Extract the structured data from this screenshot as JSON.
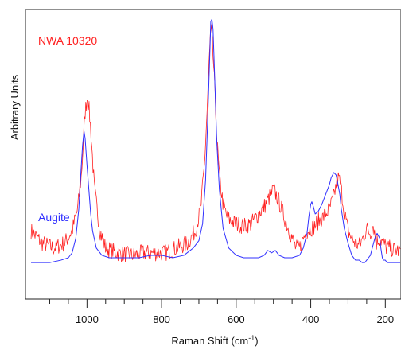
{
  "chart_data": {
    "type": "line",
    "xlabel": "Raman Shift (cm",
    "xlabel_sup": "-1",
    "xlabel_close": ")",
    "ylabel": "Arbitrary Units",
    "x_reversed": true,
    "xlim": [
      1165,
      158
    ],
    "ylim": [
      -0.15,
      1.04
    ],
    "x_major_ticks": [
      1000,
      800,
      600,
      400,
      200
    ],
    "x_minor_ticks": [
      1100,
      1050,
      950,
      900,
      850,
      750,
      700,
      650,
      550,
      500,
      450,
      350,
      300,
      250
    ],
    "grid": false,
    "legend": "inline",
    "series": [
      {
        "name": "NWA 10320",
        "color": "#ff2020",
        "noisy": true,
        "x": [
          1150,
          1120,
          1090,
          1060,
          1040,
          1025,
          1015,
          1005,
          998,
          990,
          980,
          965,
          950,
          920,
          880,
          850,
          820,
          790,
          760,
          730,
          710,
          695,
          685,
          678,
          672,
          668,
          665,
          660,
          652,
          645,
          635,
          625,
          615,
          600,
          580,
          560,
          540,
          525,
          510,
          500,
          490,
          478,
          465,
          450,
          440,
          430,
          420,
          410,
          400,
          390,
          380,
          370,
          360,
          350,
          340,
          330,
          325,
          320,
          310,
          300,
          290,
          280,
          270,
          260,
          250,
          240,
          232,
          225,
          215,
          205,
          195,
          185,
          175,
          160
        ],
        "y": [
          0.13,
          0.08,
          0.06,
          0.08,
          0.13,
          0.22,
          0.36,
          0.62,
          0.69,
          0.55,
          0.3,
          0.13,
          0.06,
          0.04,
          0.03,
          0.04,
          0.04,
          0.04,
          0.06,
          0.08,
          0.13,
          0.22,
          0.4,
          0.62,
          0.84,
          0.96,
          0.92,
          0.8,
          0.52,
          0.35,
          0.24,
          0.19,
          0.17,
          0.16,
          0.15,
          0.16,
          0.2,
          0.23,
          0.27,
          0.3,
          0.27,
          0.22,
          0.16,
          0.1,
          0.06,
          0.06,
          0.1,
          0.13,
          0.14,
          0.15,
          0.17,
          0.18,
          0.2,
          0.22,
          0.26,
          0.33,
          0.35,
          0.32,
          0.21,
          0.13,
          0.1,
          0.08,
          0.07,
          0.1,
          0.14,
          0.12,
          0.16,
          0.08,
          0.1,
          0.08,
          0.06,
          0.06,
          0.05,
          0.05
        ]
      },
      {
        "name": "Augite",
        "color": "#3030ff",
        "noisy": false,
        "x": [
          1150,
          1100,
          1070,
          1050,
          1040,
          1030,
          1022,
          1016,
          1012,
          1008,
          1005,
          1000,
          995,
          990,
          985,
          975,
          960,
          940,
          900,
          860,
          830,
          800,
          770,
          740,
          715,
          700,
          690,
          682,
          676,
          671,
          668,
          665,
          662,
          658,
          652,
          645,
          635,
          620,
          600,
          580,
          560,
          540,
          525,
          515,
          505,
          495,
          485,
          470,
          450,
          430,
          420,
          410,
          405,
          400,
          397,
          393,
          388,
          380,
          370,
          360,
          350,
          345,
          338,
          332,
          328,
          322,
          318,
          310,
          300,
          290,
          280,
          270,
          262,
          255,
          250,
          245,
          240,
          235,
          228,
          222,
          215,
          212,
          208,
          205,
          200,
          195,
          185,
          175,
          160
        ],
        "y": [
          0.0,
          0.0,
          0.01,
          0.02,
          0.04,
          0.1,
          0.22,
          0.38,
          0.48,
          0.54,
          0.51,
          0.4,
          0.3,
          0.2,
          0.13,
          0.06,
          0.03,
          0.02,
          0.02,
          0.02,
          0.03,
          0.03,
          0.02,
          0.03,
          0.06,
          0.09,
          0.16,
          0.34,
          0.6,
          0.84,
          0.99,
          1.0,
          0.96,
          0.78,
          0.5,
          0.3,
          0.14,
          0.06,
          0.03,
          0.02,
          0.02,
          0.02,
          0.03,
          0.05,
          0.04,
          0.05,
          0.03,
          0.02,
          0.02,
          0.03,
          0.06,
          0.12,
          0.19,
          0.24,
          0.25,
          0.23,
          0.2,
          0.21,
          0.24,
          0.28,
          0.32,
          0.35,
          0.37,
          0.36,
          0.33,
          0.28,
          0.22,
          0.14,
          0.08,
          0.03,
          0.01,
          0.01,
          0.0,
          0.0,
          0.01,
          0.02,
          0.03,
          0.06,
          0.1,
          0.12,
          0.1,
          0.06,
          0.02,
          0.01,
          0.01,
          0.0,
          0.0,
          0.0,
          0.0
        ]
      }
    ]
  }
}
